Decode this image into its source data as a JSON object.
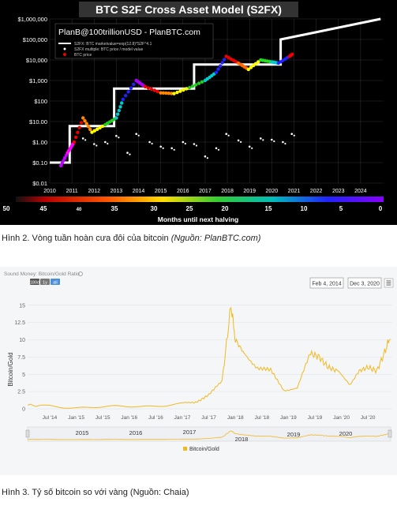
{
  "fig1": {
    "title": "BTC S2F Cross Asset Model (S2FX)",
    "credit": "PlanB@100trillionUSD  -  PlanBTC.com",
    "legend": [
      "S2FX: BTC marketvalue=exp(12.8)*S2F^4.1",
      "S2FX multiple: BTC price / model value",
      "BTC price"
    ],
    "y_ticks": [
      "$1,000,000",
      "$100,000",
      "$10,000",
      "$1,000",
      "$100",
      "$10.00",
      "$1.00",
      "$0.10",
      "$0.01"
    ],
    "x_ticks": [
      "2010",
      "2011",
      "2012",
      "2013",
      "2014",
      "2015",
      "2016",
      "2017",
      "2018",
      "2019",
      "2020",
      "2021",
      "2022",
      "2023",
      "2024"
    ],
    "bar_ticks": [
      "50",
      "45",
      "40",
      "35",
      "30",
      "25",
      "20",
      "15",
      "10",
      "5",
      "0"
    ],
    "bar_title": "Months until next halving",
    "colors": {
      "model": "#ffffff",
      "multiple": "#ffffff",
      "bg": "#000000"
    }
  },
  "caption1": {
    "main": "Hình 2. Vòng tuần hoàn cưa đôi của bitcoin ",
    "source": "(Nguồn: PlanBTC.com)"
  },
  "fig2": {
    "header": "Sound Money: Bitcoin/Gold Ratio",
    "zoom_buttons": [
      "180d",
      "1y",
      "all"
    ],
    "date_from": "Feb 4, 2014",
    "date_to": "Dec 3, 2020",
    "ylabel": "Bitcoin/Gold",
    "y_ticks": [
      "15",
      "12.5",
      "10",
      "7.5",
      "5",
      "2.5",
      "0"
    ],
    "x_ticks": [
      "Jul '14",
      "Jan '15",
      "Jul '15",
      "Jan '16",
      "Jul '16",
      "Jan '17",
      "Jul '17",
      "Jan '18",
      "Jul '18",
      "Jan '19",
      "Jul '19",
      "Jan '20",
      "Jul '20"
    ],
    "nav_years": [
      "2015",
      "2016",
      "2017",
      "2018",
      "2019",
      "2020"
    ],
    "legend": "Bitcoin/Gold",
    "line_color": "#f2b81f"
  },
  "caption2": {
    "main": "Hình 3. Tỷ số bitcoin so với vàng (Nguồn: Chaia)"
  },
  "chart_data": [
    {
      "type": "scatter",
      "title": "BTC S2F Cross Asset Model (S2FX)",
      "xlabel": "",
      "ylabel": "",
      "y_scale": "log",
      "ylim": [
        0.01,
        1000000
      ],
      "xlim": [
        2010,
        2025
      ],
      "series": [
        {
          "name": "S2FX: BTC marketvalue=exp(12.8)*S2F^4.1",
          "x": [
            2010.0,
            2010.9,
            2010.9,
            2012.9,
            2012.9,
            2016.5,
            2016.5,
            2020.4,
            2020.4,
            2024.9
          ],
          "y": [
            0.1,
            0.1,
            6,
            6,
            400,
            400,
            6000,
            6000,
            100000,
            1000000
          ]
        },
        {
          "name": "BTC price",
          "x": [
            2010.5,
            2010.8,
            2011.1,
            2011.5,
            2011.9,
            2012.5,
            2013.0,
            2013.3,
            2013.9,
            2014.3,
            2015.0,
            2015.6,
            2016.3,
            2017.0,
            2017.5,
            2017.95,
            2018.5,
            2018.95,
            2019.5,
            2020.0,
            2020.3,
            2020.8,
            2020.95
          ],
          "y": [
            0.07,
            0.3,
            1,
            15,
            3,
            7,
            15,
            120,
            1000,
            500,
            250,
            230,
            450,
            1000,
            2500,
            15000,
            7000,
            3500,
            10000,
            8000,
            7000,
            15000,
            20000
          ]
        },
        {
          "name": "S2FX multiple: BTC price / model value",
          "x": [
            2011.5,
            2012.0,
            2012.5,
            2013.0,
            2013.5,
            2013.9,
            2014.5,
            2015.0,
            2015.5,
            2016.0,
            2016.5,
            2017.0,
            2017.5,
            2017.95,
            2018.5,
            2019.0,
            2019.5,
            2020.0,
            2020.5,
            2020.9
          ],
          "y": [
            1.5,
            0.8,
            1.0,
            2.0,
            0.3,
            2.5,
            1.0,
            0.6,
            0.5,
            1.0,
            0.8,
            0.2,
            0.5,
            2.5,
            1.2,
            0.6,
            1.5,
            1.3,
            1.0,
            2.5
          ]
        }
      ]
    },
    {
      "type": "line",
      "title": "",
      "xlabel": "",
      "ylabel": "Bitcoin/Gold",
      "ylim": [
        0,
        16
      ],
      "series": [
        {
          "name": "Bitcoin/Gold",
          "x": [
            "2014-02",
            "2014-07",
            "2015-01",
            "2015-07",
            "2016-01",
            "2016-07",
            "2017-01",
            "2017-04",
            "2017-07",
            "2017-10",
            "2017-12",
            "2018-01",
            "2018-03",
            "2018-06",
            "2018-09",
            "2018-12",
            "2019-03",
            "2019-06",
            "2019-08",
            "2019-10",
            "2019-12",
            "2020-03",
            "2020-05",
            "2020-07",
            "2020-09",
            "2020-11",
            "2020-12"
          ],
          "y": [
            0.5,
            0.5,
            0.2,
            0.2,
            0.3,
            0.5,
            0.8,
            1.0,
            2.0,
            4.0,
            15.0,
            10.0,
            8.0,
            6.0,
            5.5,
            2.7,
            3.0,
            8.0,
            7.5,
            6.0,
            5.5,
            3.5,
            5.5,
            6.0,
            5.5,
            8.5,
            10.5
          ]
        }
      ]
    }
  ]
}
